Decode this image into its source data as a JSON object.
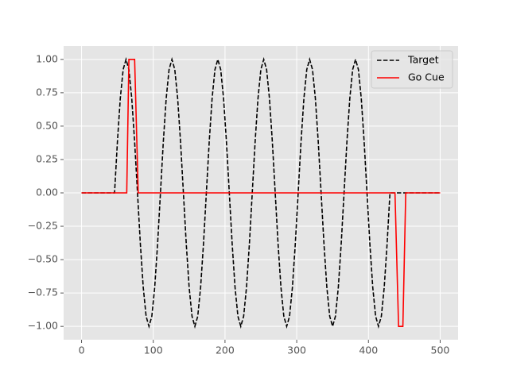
{
  "chart_data": {
    "type": "line",
    "xlim": [
      -25,
      525
    ],
    "ylim": [
      -1.1,
      1.1
    ],
    "xticks": [
      0,
      100,
      200,
      300,
      400,
      500
    ],
    "yticks": [
      {
        "value": -1,
        "label": "−1.00"
      },
      {
        "value": -0.75,
        "label": "−0.75"
      },
      {
        "value": -0.5,
        "label": "−0.50"
      },
      {
        "value": -0.25,
        "label": "−0.25"
      },
      {
        "value": 0,
        "label": "0.00"
      },
      {
        "value": 0.25,
        "label": "0.25"
      },
      {
        "value": 0.5,
        "label": "0.50"
      },
      {
        "value": 0.75,
        "label": "0.75"
      },
      {
        "value": 1,
        "label": "1.00"
      }
    ],
    "grid": true,
    "legend": "upper right",
    "series": [
      {
        "name": "Target",
        "color": "#000000",
        "dashed": true,
        "x": [
          0,
          46,
          50,
          54,
          58,
          62,
          66,
          70,
          74,
          78,
          82,
          86,
          90,
          94,
          98,
          102,
          106,
          110,
          114,
          118,
          122,
          126,
          130,
          134,
          138,
          142,
          146,
          150,
          154,
          158,
          162,
          166,
          170,
          174,
          178,
          182,
          186,
          190,
          194,
          198,
          202,
          206,
          210,
          214,
          218,
          222,
          226,
          230,
          234,
          238,
          242,
          246,
          250,
          254,
          258,
          262,
          266,
          270,
          274,
          278,
          282,
          286,
          290,
          294,
          298,
          302,
          306,
          310,
          314,
          318,
          322,
          326,
          330,
          334,
          338,
          342,
          346,
          350,
          354,
          358,
          362,
          366,
          370,
          374,
          378,
          382,
          386,
          390,
          394,
          398,
          402,
          406,
          410,
          414,
          418,
          422,
          426,
          430,
          500
        ],
        "values": [
          0,
          0,
          0.383,
          0.707,
          0.924,
          1,
          0.924,
          0.707,
          0.383,
          0,
          -0.383,
          -0.707,
          -0.924,
          -1,
          -0.924,
          -0.707,
          -0.383,
          0,
          0.383,
          0.707,
          0.924,
          1,
          0.924,
          0.707,
          0.383,
          0,
          -0.383,
          -0.707,
          -0.924,
          -1,
          -0.924,
          -0.707,
          -0.383,
          0,
          0.383,
          0.707,
          0.924,
          1,
          0.924,
          0.707,
          0.383,
          0,
          -0.383,
          -0.707,
          -0.924,
          -1,
          -0.924,
          -0.707,
          -0.383,
          0,
          0.383,
          0.707,
          0.924,
          1,
          0.924,
          0.707,
          0.383,
          0,
          -0.383,
          -0.707,
          -0.924,
          -1,
          -0.924,
          -0.707,
          -0.383,
          0,
          0.383,
          0.707,
          0.924,
          1,
          0.924,
          0.707,
          0.383,
          0,
          -0.383,
          -0.707,
          -0.924,
          -1,
          -0.924,
          -0.707,
          -0.383,
          0,
          0.383,
          0.707,
          0.924,
          1,
          0.924,
          0.707,
          0.383,
          0,
          -0.383,
          -0.707,
          -0.924,
          -1,
          -0.924,
          -0.707,
          -0.383,
          0,
          0
        ]
      },
      {
        "name": "Go Cue",
        "color": "#ff0000",
        "dashed": false,
        "x": [
          0,
          63,
          66,
          74,
          79,
          437,
          442,
          448,
          452,
          500
        ],
        "values": [
          0,
          0,
          1,
          1,
          0,
          0,
          -1,
          -1,
          0,
          0
        ]
      }
    ]
  }
}
